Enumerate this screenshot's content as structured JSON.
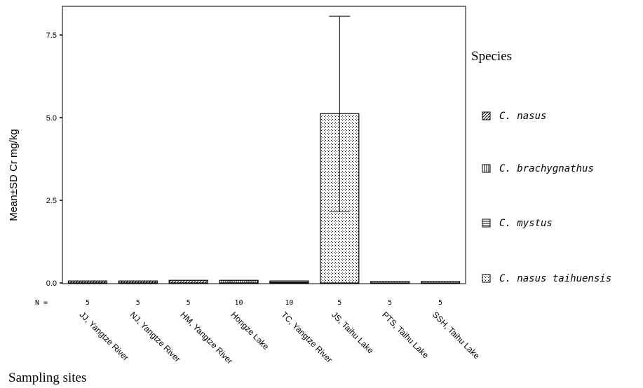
{
  "chart_data": {
    "type": "bar",
    "ylabel": "Mean±SD Cr mg/kg",
    "xlabel": "Sampling sites",
    "ylim": [
      0,
      8.4
    ],
    "yticks": [
      "0.0",
      "2.5",
      "5.0",
      "7.5"
    ],
    "ytick_values": [
      0,
      2.5,
      5.0,
      7.5
    ],
    "n_label": "N =",
    "categories": [
      "JJ, Yangtze River",
      "NJ, Yangtze River",
      "HM, Yangtze River",
      "Hongze Lake",
      "TC, Yangtze River",
      "JS, Taihu Lake",
      "PTS, Taihu Lake",
      "SSH, Taihu Lake"
    ],
    "n": [
      "5",
      "5",
      "5",
      "10",
      "10",
      "5",
      "5",
      "5"
    ],
    "legend_title": "Species",
    "series": [
      {
        "name": "C. nasus",
        "pattern": "diagonal"
      },
      {
        "name": "C. brachygnathus",
        "pattern": "vertical"
      },
      {
        "name": "C. mystus",
        "pattern": "horizontal"
      },
      {
        "name": "C. nasus taihuensis",
        "pattern": "dots"
      }
    ],
    "bars": [
      {
        "category": "JJ, Yangtze River",
        "series": "C. nasus",
        "value": 0.06
      },
      {
        "category": "NJ, Yangtze River",
        "series": "C. nasus",
        "value": 0.06
      },
      {
        "category": "HM, Yangtze River",
        "series": "C. nasus",
        "value": 0.08
      },
      {
        "category": "Hongze Lake",
        "series": "C. brachygnathus",
        "value": 0.08
      },
      {
        "category": "TC, Yangtze River",
        "series": "C. mystus",
        "value": 0.06
      },
      {
        "category": "JS, Taihu Lake",
        "series": "C. nasus taihuensis",
        "value": 5.12,
        "error_low": 2.15,
        "error_high": 8.07
      },
      {
        "category": "PTS, Taihu Lake",
        "series": "C. nasus taihuensis",
        "value": 0.04
      },
      {
        "category": "SSH, Taihu Lake",
        "series": "C. nasus taihuensis",
        "value": 0.04
      }
    ]
  }
}
